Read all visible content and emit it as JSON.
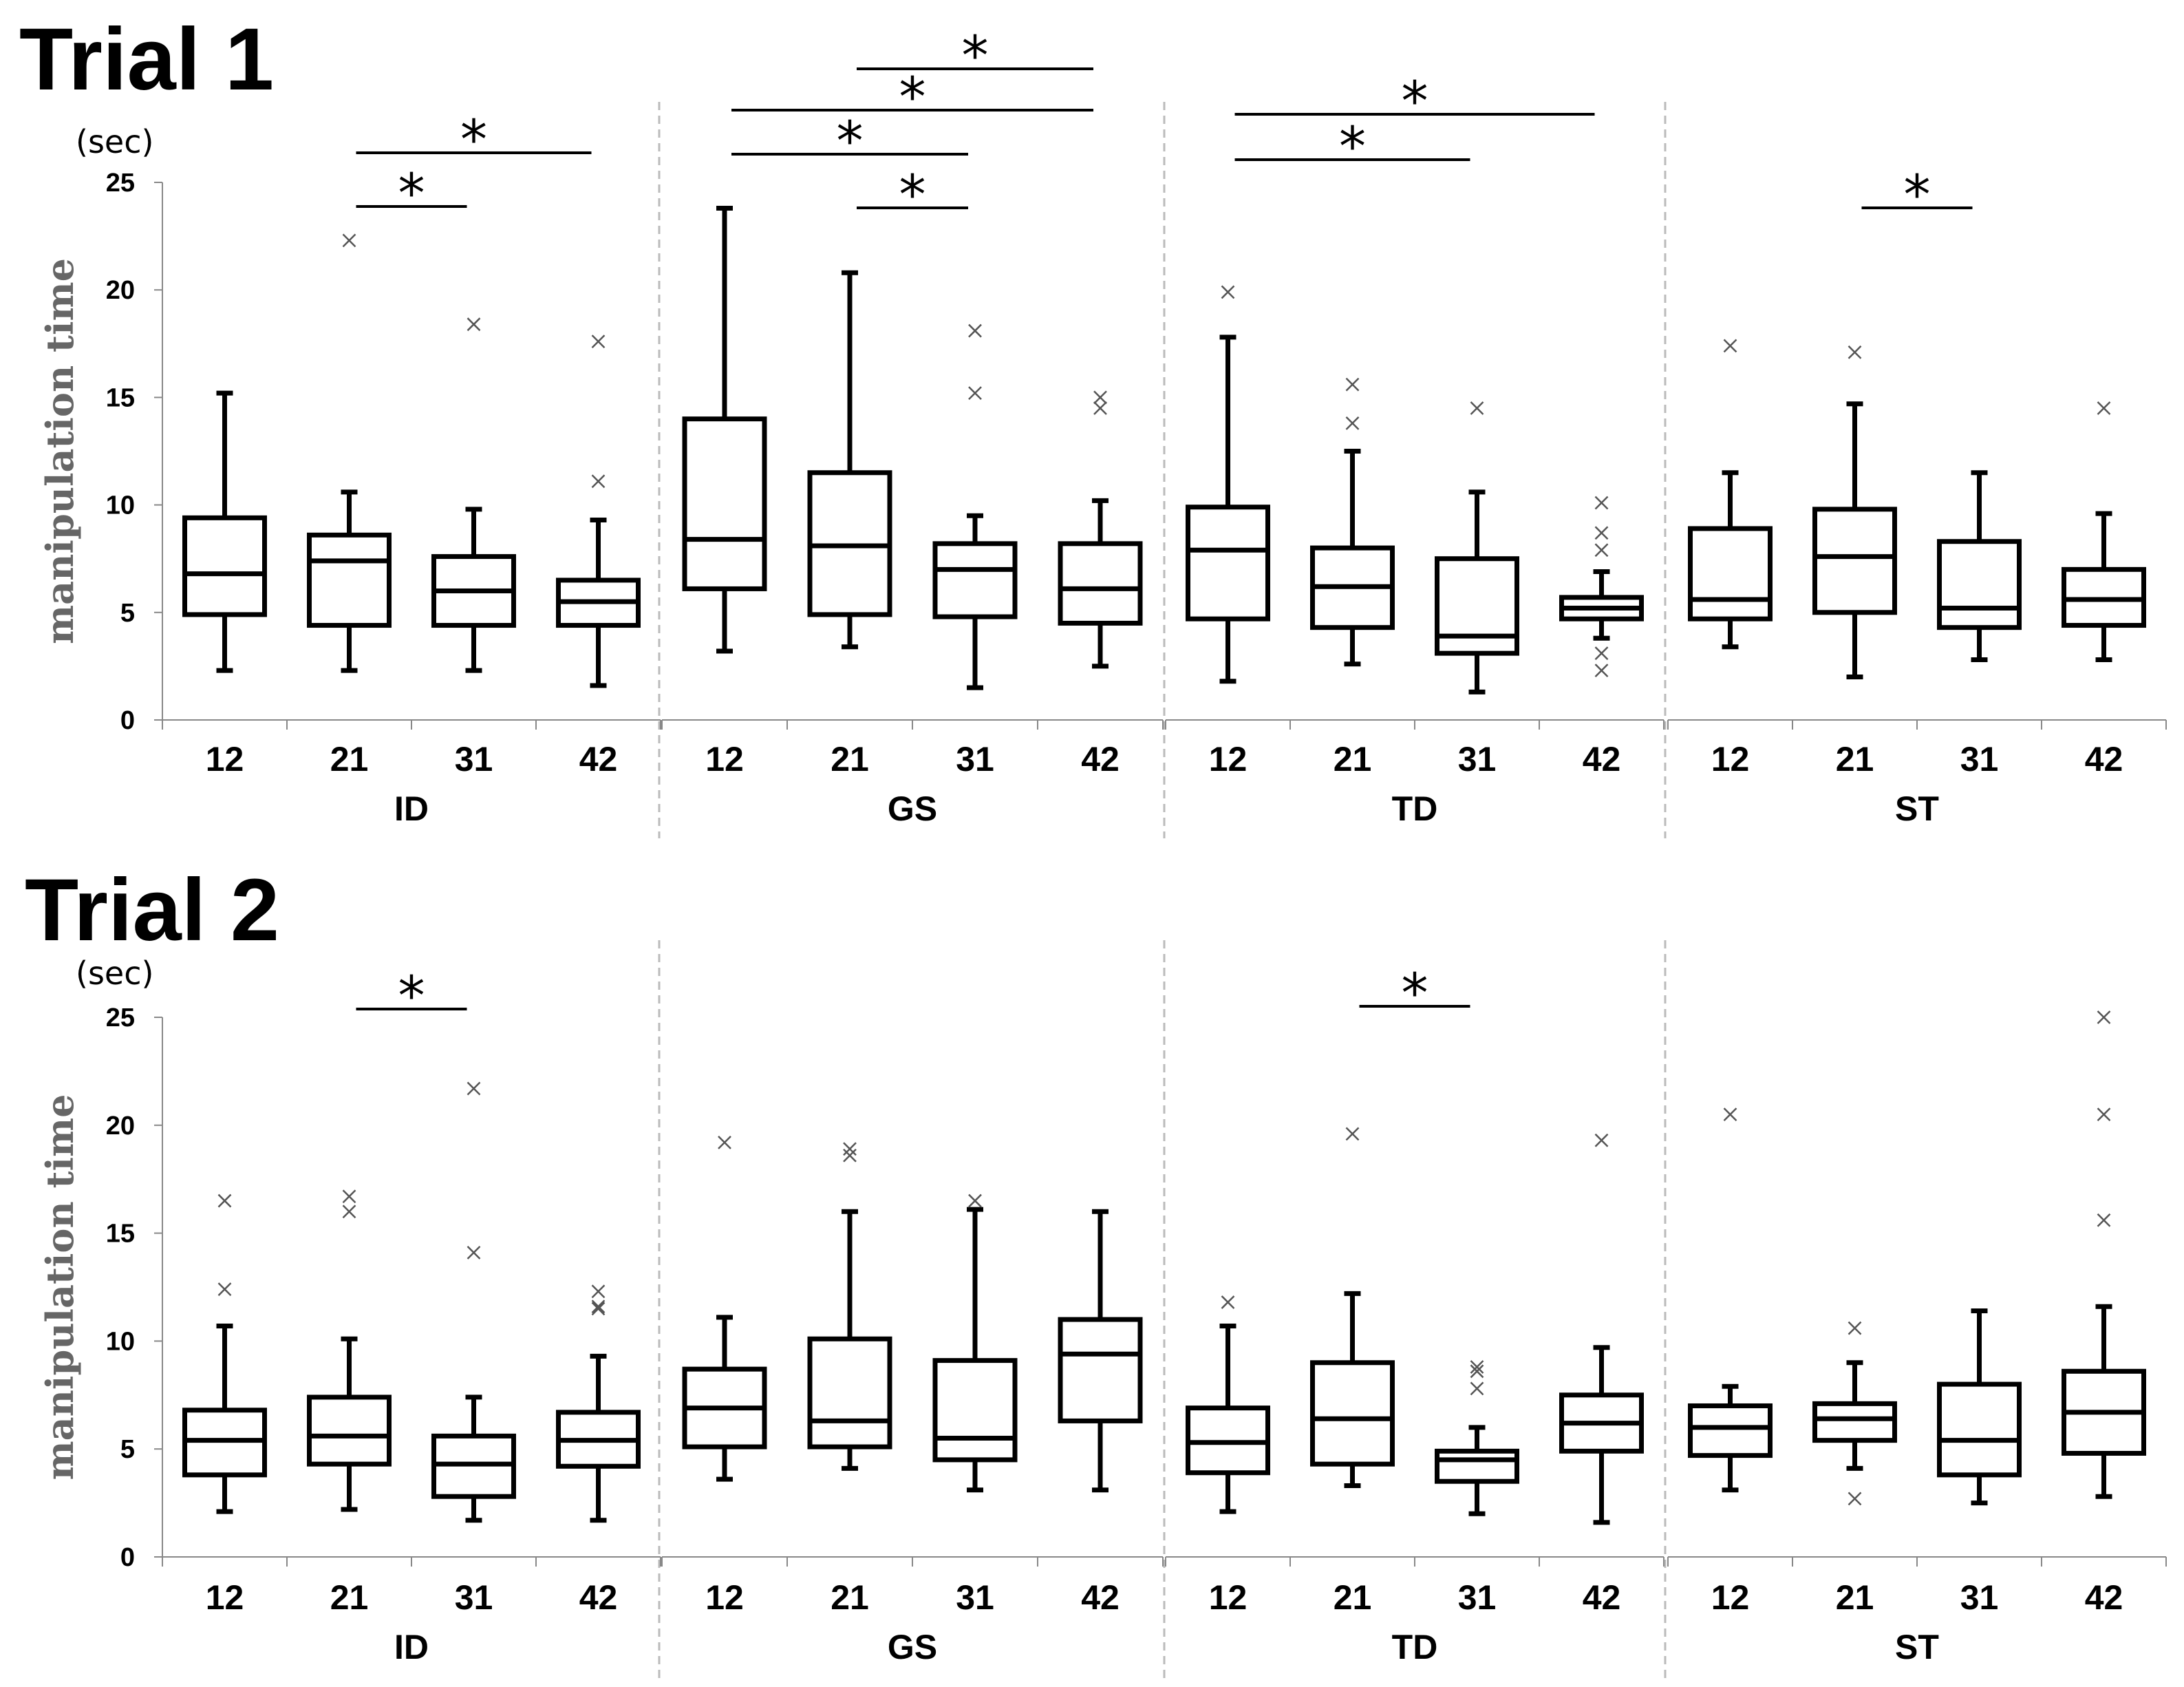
{
  "chart_data": [
    {
      "type": "boxplot",
      "title": "Trial 1",
      "ylabel": "manipulation time",
      "unit": "(sec)",
      "ylim": [
        0,
        25
      ],
      "yticks": [
        0,
        5,
        10,
        15,
        20,
        25
      ],
      "groups": [
        {
          "name": "ID",
          "boxes": [
            {
              "x": "12",
              "min": 2.3,
              "q1": 4.9,
              "median": 6.8,
              "q3": 9.4,
              "max": 15.2,
              "outliers": []
            },
            {
              "x": "21",
              "min": 2.3,
              "q1": 4.4,
              "median": 7.4,
              "q3": 8.6,
              "max": 10.6,
              "outliers": [
                22.3
              ]
            },
            {
              "x": "31",
              "min": 2.3,
              "q1": 4.4,
              "median": 6.0,
              "q3": 7.6,
              "max": 9.8,
              "outliers": [
                18.4
              ]
            },
            {
              "x": "42",
              "min": 1.6,
              "q1": 4.4,
              "median": 5.5,
              "q3": 6.5,
              "max": 9.3,
              "outliers": [
                11.1,
                17.6
              ]
            }
          ],
          "significance": [
            {
              "from": "21",
              "to": "31",
              "label": "*"
            },
            {
              "from": "21",
              "to": "42",
              "label": "*"
            }
          ]
        },
        {
          "name": "GS",
          "boxes": [
            {
              "x": "12",
              "min": 3.2,
              "q1": 6.1,
              "median": 8.4,
              "q3": 14.0,
              "max": 23.8,
              "outliers": []
            },
            {
              "x": "21",
              "min": 3.4,
              "q1": 4.9,
              "median": 8.1,
              "q3": 11.5,
              "max": 20.8,
              "outliers": []
            },
            {
              "x": "31",
              "min": 1.5,
              "q1": 4.8,
              "median": 7.0,
              "q3": 8.2,
              "max": 9.5,
              "outliers": [
                15.2,
                18.1
              ]
            },
            {
              "x": "42",
              "min": 2.5,
              "q1": 4.5,
              "median": 6.1,
              "q3": 8.2,
              "max": 10.2,
              "outliers": [
                14.5,
                15.0
              ]
            }
          ],
          "significance": [
            {
              "from": "21",
              "to": "31",
              "label": "*"
            },
            {
              "from": "12",
              "to": "31",
              "label": "*"
            },
            {
              "from": "12",
              "to": "42",
              "label": "*"
            },
            {
              "from": "21",
              "to": "42",
              "label": "*"
            }
          ]
        },
        {
          "name": "TD",
          "boxes": [
            {
              "x": "12",
              "min": 1.8,
              "q1": 4.7,
              "median": 7.9,
              "q3": 9.9,
              "max": 17.8,
              "outliers": [
                19.9
              ]
            },
            {
              "x": "21",
              "min": 2.6,
              "q1": 4.3,
              "median": 6.2,
              "q3": 8.0,
              "max": 12.5,
              "outliers": [
                13.8,
                15.6
              ]
            },
            {
              "x": "31",
              "min": 1.3,
              "q1": 3.1,
              "median": 3.9,
              "q3": 7.5,
              "max": 10.6,
              "outliers": [
                14.5
              ]
            },
            {
              "x": "42",
              "min": 3.8,
              "q1": 4.7,
              "median": 5.2,
              "q3": 5.7,
              "max": 6.9,
              "outliers": [
                2.3,
                3.1,
                7.9,
                8.7,
                10.1
              ]
            }
          ],
          "significance": [
            {
              "from": "12",
              "to": "31",
              "label": "*"
            },
            {
              "from": "12",
              "to": "42",
              "label": "*"
            }
          ]
        },
        {
          "name": "ST",
          "boxes": [
            {
              "x": "12",
              "min": 3.4,
              "q1": 4.7,
              "median": 5.6,
              "q3": 8.9,
              "max": 11.5,
              "outliers": [
                17.4
              ]
            },
            {
              "x": "21",
              "min": 2.0,
              "q1": 5.0,
              "median": 7.6,
              "q3": 9.8,
              "max": 14.7,
              "outliers": [
                17.1
              ]
            },
            {
              "x": "31",
              "min": 2.8,
              "q1": 4.3,
              "median": 5.2,
              "q3": 8.3,
              "max": 11.5,
              "outliers": []
            },
            {
              "x": "42",
              "min": 2.8,
              "q1": 4.4,
              "median": 5.6,
              "q3": 7.0,
              "max": 9.6,
              "outliers": [
                14.5
              ]
            }
          ],
          "significance": [
            {
              "from": "21",
              "to": "31",
              "label": "*"
            }
          ]
        }
      ]
    },
    {
      "type": "boxplot",
      "title": "Trial 2",
      "ylabel": "manipulation time",
      "unit": "(sec)",
      "ylim": [
        0,
        25
      ],
      "yticks": [
        0,
        5,
        10,
        15,
        20,
        25
      ],
      "groups": [
        {
          "name": "ID",
          "boxes": [
            {
              "x": "12",
              "min": 2.1,
              "q1": 3.8,
              "median": 5.4,
              "q3": 6.8,
              "max": 10.7,
              "outliers": [
                12.4,
                16.5
              ]
            },
            {
              "x": "21",
              "min": 2.2,
              "q1": 4.3,
              "median": 5.6,
              "q3": 7.4,
              "max": 10.1,
              "outliers": [
                16.0,
                16.7
              ]
            },
            {
              "x": "31",
              "min": 1.7,
              "q1": 2.8,
              "median": 4.3,
              "q3": 5.6,
              "max": 7.4,
              "outliers": [
                14.1,
                21.7
              ]
            },
            {
              "x": "42",
              "min": 1.7,
              "q1": 4.2,
              "median": 5.4,
              "q3": 6.7,
              "max": 9.3,
              "outliers": [
                11.5,
                11.6,
                12.3
              ]
            }
          ],
          "significance": [
            {
              "from": "21",
              "to": "31",
              "label": "*"
            }
          ]
        },
        {
          "name": "GS",
          "boxes": [
            {
              "x": "12",
              "min": 3.6,
              "q1": 5.1,
              "median": 6.9,
              "q3": 8.7,
              "max": 11.1,
              "outliers": [
                19.2
              ]
            },
            {
              "x": "21",
              "min": 4.1,
              "q1": 5.1,
              "median": 6.3,
              "q3": 10.1,
              "max": 16.0,
              "outliers": [
                18.6,
                18.9
              ]
            },
            {
              "x": "31",
              "min": 3.1,
              "q1": 4.5,
              "median": 5.5,
              "q3": 9.1,
              "max": 16.1,
              "outliers": [
                16.5
              ]
            },
            {
              "x": "42",
              "min": 3.1,
              "q1": 6.3,
              "median": 9.4,
              "q3": 11.0,
              "max": 16.0,
              "outliers": []
            }
          ],
          "significance": []
        },
        {
          "name": "TD",
          "boxes": [
            {
              "x": "12",
              "min": 2.1,
              "q1": 3.9,
              "median": 5.3,
              "q3": 6.9,
              "max": 10.7,
              "outliers": [
                11.8
              ]
            },
            {
              "x": "21",
              "min": 3.3,
              "q1": 4.3,
              "median": 6.4,
              "q3": 9.0,
              "max": 12.2,
              "outliers": [
                19.6
              ]
            },
            {
              "x": "31",
              "min": 2.0,
              "q1": 3.5,
              "median": 4.5,
              "q3": 4.9,
              "max": 6.0,
              "outliers": [
                7.8,
                8.6,
                8.8
              ]
            },
            {
              "x": "42",
              "min": 1.6,
              "q1": 4.9,
              "median": 6.2,
              "q3": 7.5,
              "max": 9.7,
              "outliers": [
                19.3
              ]
            }
          ],
          "significance": [
            {
              "from": "21",
              "to": "31",
              "label": "*"
            }
          ]
        },
        {
          "name": "ST",
          "boxes": [
            {
              "x": "12",
              "min": 3.1,
              "q1": 4.7,
              "median": 6.0,
              "q3": 7.0,
              "max": 7.9,
              "outliers": [
                20.5
              ]
            },
            {
              "x": "21",
              "min": 4.1,
              "q1": 5.4,
              "median": 6.4,
              "q3": 7.1,
              "max": 9.0,
              "outliers": [
                2.7,
                10.6
              ]
            },
            {
              "x": "31",
              "min": 2.5,
              "q1": 3.8,
              "median": 5.4,
              "q3": 8.0,
              "max": 11.4,
              "outliers": []
            },
            {
              "x": "42",
              "min": 2.8,
              "q1": 4.8,
              "median": 6.7,
              "q3": 8.6,
              "max": 11.6,
              "outliers": [
                15.6,
                20.5,
                25.0
              ]
            }
          ],
          "significance": []
        }
      ]
    }
  ]
}
